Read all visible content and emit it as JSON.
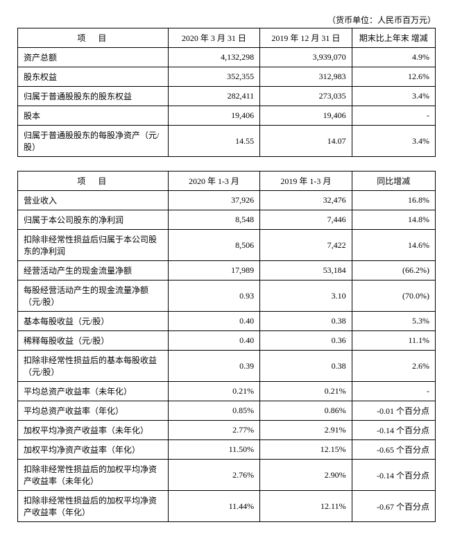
{
  "unit_note": "（货币单位：人民币百万元）",
  "table1": {
    "headers": [
      "项　目",
      "2020 年 3 月 31 日",
      "2019 年 12 月 31 日",
      "期末比上年末\n增减"
    ],
    "rows": [
      [
        "资产总额",
        "4,132,298",
        "3,939,070",
        "4.9%"
      ],
      [
        "股东权益",
        "352,355",
        "312,983",
        "12.6%"
      ],
      [
        "归属于普通股股东的股东权益",
        "282,411",
        "273,035",
        "3.4%"
      ],
      [
        "股本",
        "19,406",
        "19,406",
        "-"
      ],
      [
        "归属于普通股股东的每股净资产（元/股）",
        "14.55",
        "14.07",
        "3.4%"
      ]
    ]
  },
  "table2": {
    "headers": [
      "项　目",
      "2020 年 1-3 月",
      "2019 年 1-3 月",
      "同比增减"
    ],
    "rows": [
      [
        "营业收入",
        "37,926",
        "32,476",
        "16.8%"
      ],
      [
        "归属于本公司股东的净利润",
        "8,548",
        "7,446",
        "14.8%"
      ],
      [
        "扣除非经常性损益后归属于本公司股东的净利润",
        "8,506",
        "7,422",
        "14.6%"
      ],
      [
        "经营活动产生的现金流量净额",
        "17,989",
        "53,184",
        "(66.2%)"
      ],
      [
        "每股经营活动产生的现金流量净额（元/股）",
        "0.93",
        "3.10",
        "(70.0%)"
      ],
      [
        "基本每股收益（元/股）",
        "0.40",
        "0.38",
        "5.3%"
      ],
      [
        "稀释每股收益（元/股）",
        "0.40",
        "0.36",
        "11.1%"
      ],
      [
        "扣除非经常性损益后的基本每股收益（元/股）",
        "0.39",
        "0.38",
        "2.6%"
      ],
      [
        "平均总资产收益率（未年化）",
        "0.21%",
        "0.21%",
        "-"
      ],
      [
        "平均总资产收益率（年化）",
        "0.85%",
        "0.86%",
        "-0.01 个百分点"
      ],
      [
        "加权平均净资产收益率（未年化）",
        "2.77%",
        "2.91%",
        "-0.14 个百分点"
      ],
      [
        "加权平均净资产收益率（年化）",
        "11.50%",
        "12.15%",
        "-0.65 个百分点"
      ],
      [
        "扣除非经常性损益后的加权平均净资产收益率（未年化）",
        "2.76%",
        "2.90%",
        "-0.14 个百分点"
      ],
      [
        "扣除非经常性损益后的加权平均净资产收益率（年化）",
        "11.44%",
        "12.11%",
        "-0.67 个百分点"
      ]
    ]
  }
}
